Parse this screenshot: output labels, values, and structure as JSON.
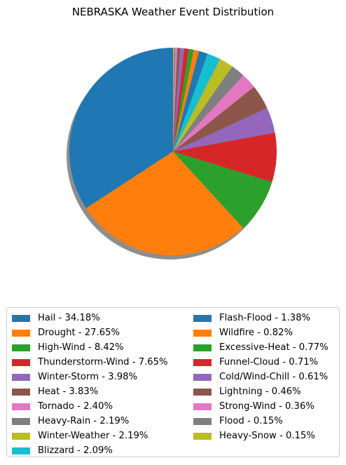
{
  "chart_data": {
    "type": "pie",
    "title": "NEBRASKA Weather Event Distribution",
    "start_angle_deg": 90,
    "direction": "counterclockwise",
    "shadow": true,
    "legend_placement": "below",
    "slices": [
      {
        "label": "Hail - 34.18%",
        "value": 34.18,
        "color": "#1f77b4"
      },
      {
        "label": "Drought - 27.65%",
        "value": 27.65,
        "color": "#ff7f0e"
      },
      {
        "label": "High-Wind - 8.42%",
        "value": 8.42,
        "color": "#2ca02c"
      },
      {
        "label": "Thunderstorm-Wind - 7.65%",
        "value": 7.65,
        "color": "#d62728"
      },
      {
        "label": "Winter-Storm - 3.98%",
        "value": 3.98,
        "color": "#9467bd"
      },
      {
        "label": "Heat - 3.83%",
        "value": 3.83,
        "color": "#8c564b"
      },
      {
        "label": "Tornado - 2.40%",
        "value": 2.4,
        "color": "#e377c2"
      },
      {
        "label": "Heavy-Rain - 2.19%",
        "value": 2.19,
        "color": "#7f7f7f"
      },
      {
        "label": "Winter-Weather - 2.19%",
        "value": 2.19,
        "color": "#bcbd22"
      },
      {
        "label": "Blizzard - 2.09%",
        "value": 2.09,
        "color": "#17becf"
      },
      {
        "label": "Flash-Flood - 1.38%",
        "value": 1.38,
        "color": "#1f77b4"
      },
      {
        "label": "Wildfire - 0.82%",
        "value": 0.82,
        "color": "#ff7f0e"
      },
      {
        "label": "Excessive-Heat - 0.77%",
        "value": 0.77,
        "color": "#2ca02c"
      },
      {
        "label": "Funnel-Cloud - 0.71%",
        "value": 0.71,
        "color": "#d62728"
      },
      {
        "label": "Cold/Wind-Chill - 0.61%",
        "value": 0.61,
        "color": "#9467bd"
      },
      {
        "label": "Lightning - 0.46%",
        "value": 0.46,
        "color": "#8c564b"
      },
      {
        "label": "Strong-Wind - 0.36%",
        "value": 0.36,
        "color": "#e377c2"
      },
      {
        "label": "Flood - 0.15%",
        "value": 0.15,
        "color": "#7f7f7f"
      },
      {
        "label": "Heavy-Snow - 0.15%",
        "value": 0.15,
        "color": "#bcbd22"
      }
    ]
  }
}
